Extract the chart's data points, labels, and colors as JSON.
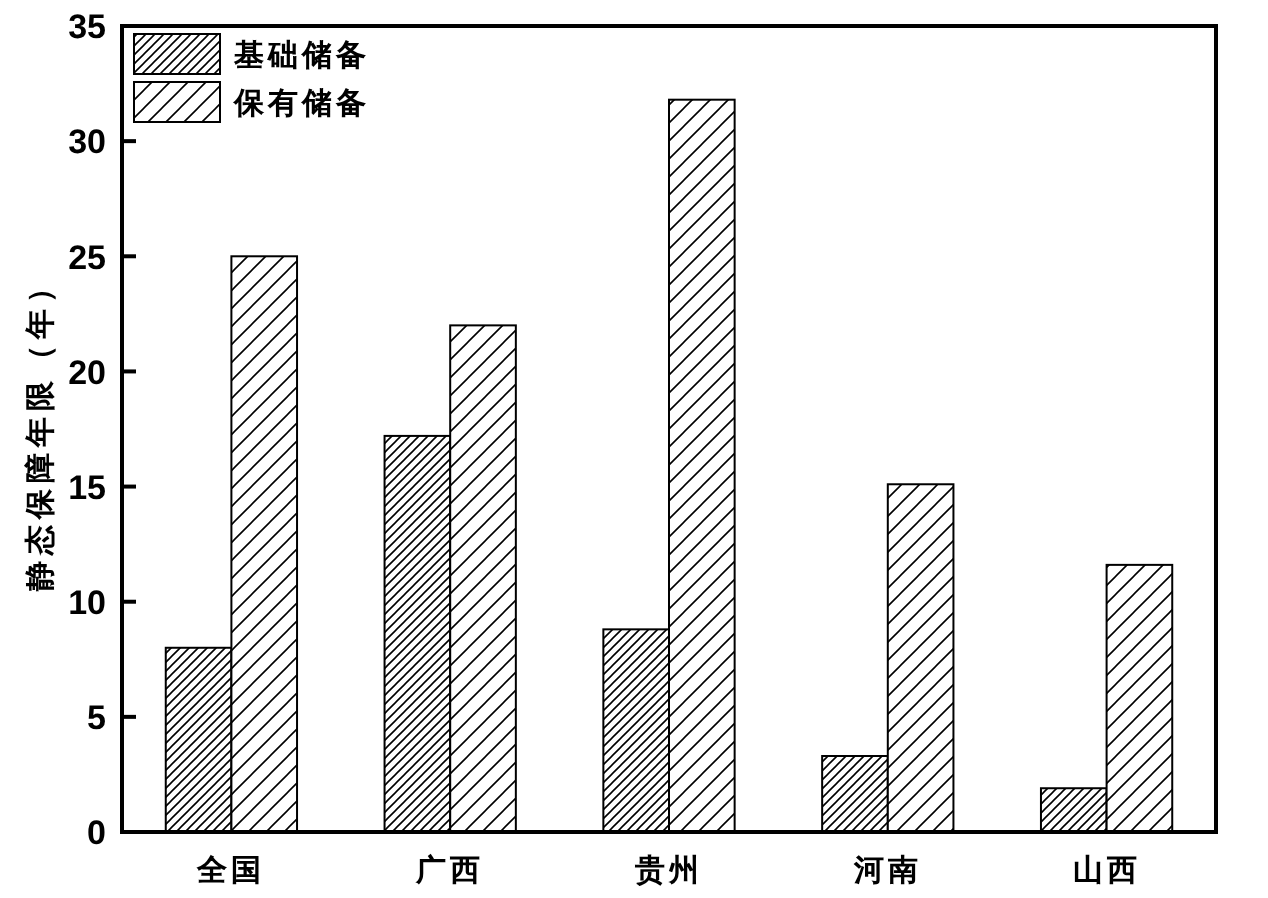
{
  "chart_data": {
    "type": "bar",
    "ylabel": "静态保障年限（年）",
    "categories": [
      "全国",
      "广西",
      "贵州",
      "河南",
      "山西"
    ],
    "series": [
      {
        "name": "基础储备",
        "color": "#000000",
        "values": [
          8.0,
          17.2,
          8.8,
          3.3,
          1.9
        ]
      },
      {
        "name": "保有储备",
        "color": "#000000",
        "values": [
          25.0,
          22.0,
          31.8,
          15.1,
          11.6
        ]
      }
    ],
    "ylim": [
      0,
      35
    ],
    "yticks": [
      0,
      5,
      10,
      15,
      20,
      25,
      30,
      35
    ],
    "grid": false,
    "legend": "top left"
  }
}
